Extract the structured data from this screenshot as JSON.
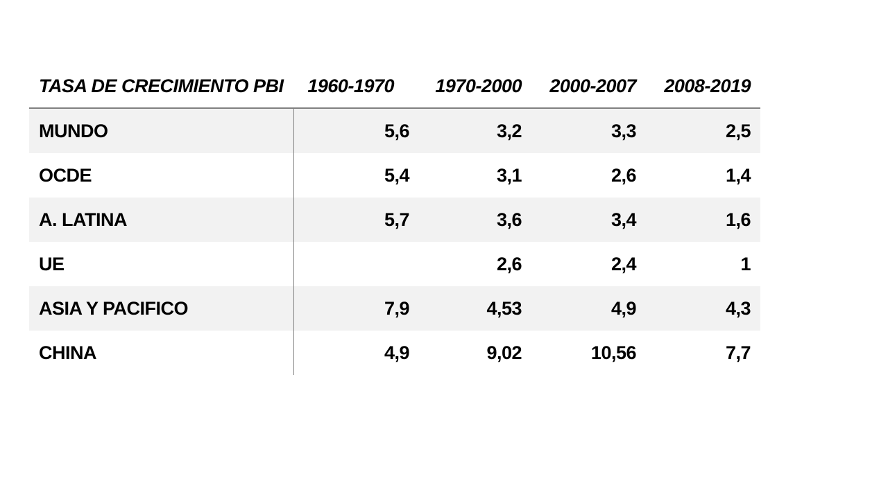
{
  "colors": {
    "background": "#ffffff",
    "stripe": "#f2f2f2",
    "rule": "#7f7f7f",
    "text": "#000000"
  },
  "table": {
    "title": "TASA DE CRECIMIENTO PBI",
    "columns": [
      "1960-1970",
      "1970-2000",
      "2000-2007",
      "2008-2019"
    ],
    "rows": [
      {
        "label": "MUNDO",
        "values": [
          "5,6",
          "3,2",
          "3,3",
          "2,5"
        ]
      },
      {
        "label": "OCDE",
        "values": [
          "5,4",
          "3,1",
          "2,6",
          "1,4"
        ]
      },
      {
        "label": "A. LATINA",
        "values": [
          "5,7",
          "3,6",
          "3,4",
          "1,6"
        ]
      },
      {
        "label": "UE",
        "values": [
          "",
          "2,6",
          "2,4",
          "1"
        ]
      },
      {
        "label": "ASIA Y PACIFICO",
        "values": [
          "7,9",
          "4,53",
          "4,9",
          "4,3"
        ]
      },
      {
        "label": "CHINA",
        "values": [
          "4,9",
          "9,02",
          "10,56",
          "7,7"
        ]
      }
    ]
  },
  "chart_data": {
    "type": "table",
    "title": "TASA DE CRECIMIENTO PBI",
    "columns": [
      "1960-1970",
      "1970-2000",
      "2000-2007",
      "2008-2019"
    ],
    "rows": [
      {
        "label": "MUNDO",
        "values": [
          5.6,
          3.2,
          3.3,
          2.5
        ]
      },
      {
        "label": "OCDE",
        "values": [
          5.4,
          3.1,
          2.6,
          1.4
        ]
      },
      {
        "label": "A. LATINA",
        "values": [
          5.7,
          3.6,
          3.4,
          1.6
        ]
      },
      {
        "label": "UE",
        "values": [
          null,
          2.6,
          2.4,
          1
        ]
      },
      {
        "label": "ASIA Y PACIFICO",
        "values": [
          7.9,
          4.53,
          4.9,
          4.3
        ]
      },
      {
        "label": "CHINA",
        "values": [
          4.9,
          9.02,
          10.56,
          7.7
        ]
      }
    ],
    "notes": "Decimal comma notation (Spanish locale); UE has no value for 1960-1970; zebra striping on rows 1,3,5; vertical rule separates label column from numeric columns"
  }
}
